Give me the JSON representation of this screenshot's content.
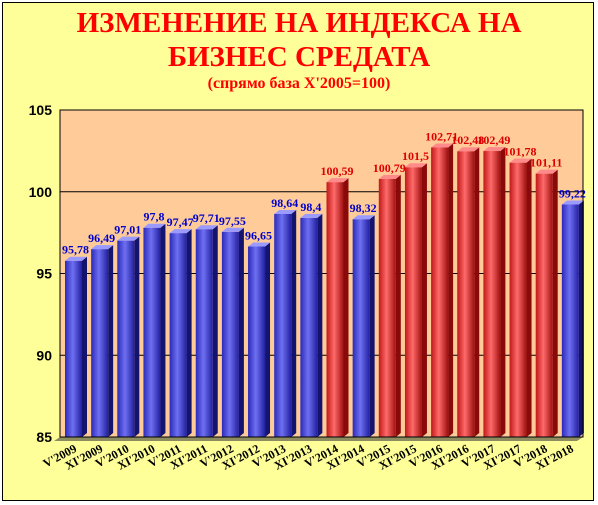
{
  "title_line1": "ИЗМЕНЕНИЕ НА ИНДЕКСА НА",
  "title_line2": "БИЗНЕС СРЕДАТА",
  "subtitle": "(спрямо база X'2005=100)",
  "colors": {
    "background": "#ffff99",
    "plot": "#ffcc99",
    "title": "#ff0000",
    "blue_bar": "#4f4fe0",
    "blue_label": "#0000cc",
    "red_bar": "#ee4444",
    "red_label": "#dd0000"
  },
  "chart_data": {
    "type": "bar",
    "title": "ИЗМЕНЕНИЕ НА ИНДЕКСА НА БИЗНЕС СРЕДАТА",
    "subtitle": "(спрямо база X'2005=100)",
    "ylim": [
      85,
      105
    ],
    "yticks": [
      "85",
      "90",
      "95",
      "100",
      "105"
    ],
    "grid": true,
    "categories": [
      "V'2009",
      "XI'2009",
      "V'2010",
      "XI'2010",
      "V'2011",
      "XI'2011",
      "V'2012",
      "XI'2012",
      "V'2013",
      "XI'2013",
      "V'2014",
      "XI'2014",
      "V'2015",
      "XI'2015",
      "V'2016",
      "XI'2016",
      "V'2017",
      "XI'2017",
      "V'2018",
      "XI'2018"
    ],
    "values": [
      95.78,
      96.49,
      97.01,
      97.8,
      97.47,
      97.71,
      97.55,
      96.65,
      98.64,
      98.4,
      100.59,
      98.32,
      100.79,
      101.5,
      102.71,
      102.48,
      102.49,
      101.78,
      101.11,
      99.22
    ],
    "labels": [
      "95,78",
      "96,49",
      "97,01",
      "97,8",
      "97,47",
      "97,71",
      "97,55",
      "96,65",
      "98,64",
      "98,4",
      "100,59",
      "98,32",
      "100,79",
      "101,5",
      "102,71",
      "102,48",
      "102,49",
      "101,78",
      "101,11",
      "99,22"
    ],
    "bar_colors": [
      "blue",
      "blue",
      "blue",
      "blue",
      "blue",
      "blue",
      "blue",
      "blue",
      "blue",
      "blue",
      "red",
      "blue",
      "red",
      "red",
      "red",
      "red",
      "red",
      "red",
      "red",
      "blue"
    ]
  }
}
